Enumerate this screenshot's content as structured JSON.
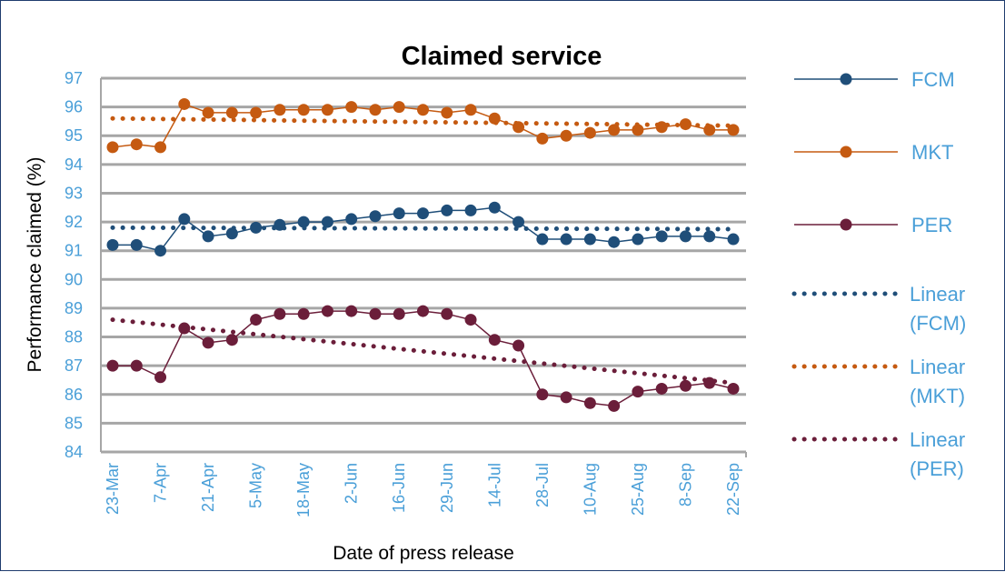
{
  "chart_data": {
    "type": "line",
    "title": "Claimed service",
    "xlabel": "Date of press release",
    "ylabel": "Performance claimed (%)",
    "ylim": [
      84,
      97
    ],
    "yticks": [
      84,
      85,
      86,
      87,
      88,
      89,
      90,
      91,
      92,
      93,
      94,
      95,
      96,
      97
    ],
    "grid": "horizontal",
    "legend_position": "right",
    "x_tick_labels": [
      "23-Mar",
      "7-Apr",
      "21-Apr",
      "5-May",
      "18-May",
      "2-Jun",
      "16-Jun",
      "29-Jun",
      "14-Jul",
      "28-Jul",
      "10-Aug",
      "25-Aug",
      "8-Sep",
      "22-Sep"
    ],
    "series": [
      {
        "name": "FCM",
        "color": "#1f4e79",
        "values": [
          91.2,
          91.2,
          91.0,
          92.1,
          91.5,
          91.6,
          91.8,
          91.9,
          92.0,
          92.0,
          92.1,
          92.2,
          92.3,
          92.3,
          92.4,
          92.4,
          92.5,
          92.0,
          91.4,
          91.4,
          91.4,
          91.3,
          91.4,
          91.5,
          91.5,
          91.5,
          91.4
        ]
      },
      {
        "name": "MKT",
        "color": "#c55a11",
        "values": [
          94.6,
          94.7,
          94.6,
          96.1,
          95.8,
          95.8,
          95.8,
          95.9,
          95.9,
          95.9,
          96.0,
          95.9,
          96.0,
          95.9,
          95.8,
          95.9,
          95.6,
          95.3,
          94.9,
          95.0,
          95.1,
          95.2,
          95.2,
          95.3,
          95.4,
          95.2,
          95.2
        ]
      },
      {
        "name": "PER",
        "color": "#6b1e3a",
        "values": [
          87.0,
          87.0,
          86.6,
          88.3,
          87.8,
          87.9,
          88.6,
          88.8,
          88.8,
          88.9,
          88.9,
          88.8,
          88.8,
          88.9,
          88.8,
          88.6,
          87.9,
          87.7,
          86.0,
          85.9,
          85.7,
          85.6,
          86.1,
          86.2,
          86.3,
          86.4,
          86.2
        ]
      }
    ],
    "trendlines": [
      {
        "name": "Linear (FCM)",
        "color": "#1f4e79",
        "start": 91.8,
        "end": 91.75
      },
      {
        "name": "Linear (MKT)",
        "color": "#c55a11",
        "start": 95.6,
        "end": 95.35
      },
      {
        "name": "Linear (PER)",
        "color": "#6b1e3a",
        "start": 88.6,
        "end": 86.4
      }
    ],
    "legend": [
      {
        "label": "FCM",
        "style": "line-marker",
        "color": "#1f4e79"
      },
      {
        "label": "MKT",
        "style": "line-marker",
        "color": "#c55a11"
      },
      {
        "label": "PER",
        "style": "line-marker",
        "color": "#6b1e3a"
      },
      {
        "label": "Linear (FCM)",
        "line1": "Linear",
        "line2": "(FCM)",
        "style": "dotted",
        "color": "#1f4e79"
      },
      {
        "label": "Linear (MKT)",
        "line1": "Linear",
        "line2": "(MKT)",
        "style": "dotted",
        "color": "#c55a11"
      },
      {
        "label": "Linear (PER)",
        "line1": "Linear",
        "line2": "(PER)",
        "style": "dotted",
        "color": "#6b1e3a"
      }
    ],
    "colors": {
      "gridline": "#a6a6a6",
      "tick_text": "#4a9fd8",
      "border": "#1f3c6e"
    }
  }
}
